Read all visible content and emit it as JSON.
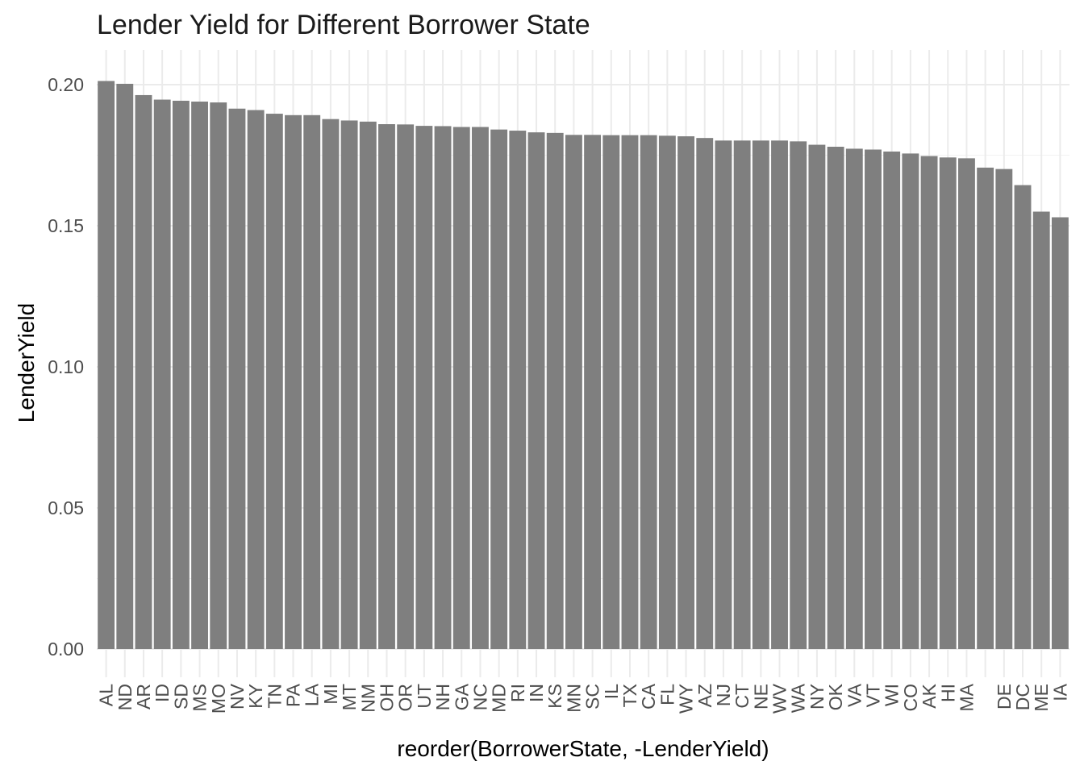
{
  "chart_data": {
    "type": "bar",
    "title": "Lender Yield for Different Borrower State",
    "xlabel": "reorder(BorrowerState, -LenderYield)",
    "ylabel": "LenderYield",
    "ylim": [
      0,
      0.21
    ],
    "yticks": [
      "0.00",
      "0.05",
      "0.10",
      "0.15",
      "0.20"
    ],
    "grid": true,
    "bar_color": "#7f7f7f",
    "grid_color": "#ebebeb",
    "categories": [
      "AL",
      "ND",
      "AR",
      "ID",
      "SD",
      "MS",
      "MO",
      "NV",
      "KY",
      "TN",
      "PA",
      "LA",
      "MI",
      "MT",
      "NM",
      "OH",
      "OR",
      "UT",
      "NH",
      "GA",
      "NC",
      "MD",
      "RI",
      "IN",
      "KS",
      "MN",
      "SC",
      "IL",
      "TX",
      "CA",
      "FL",
      "WY",
      "AZ",
      "NJ",
      "CT",
      "NE",
      "WV",
      "WA",
      "NY",
      "OK",
      "VA",
      "VT",
      "WI",
      "CO",
      "AK",
      "HI",
      "MA",
      "",
      "DE",
      "DC",
      "ME",
      "IA"
    ],
    "values": [
      0.2013,
      0.2003,
      0.1963,
      0.1947,
      0.1943,
      0.194,
      0.1937,
      0.1915,
      0.191,
      0.1897,
      0.1892,
      0.1892,
      0.1878,
      0.1873,
      0.1869,
      0.186,
      0.1859,
      0.1854,
      0.1853,
      0.185,
      0.185,
      0.1841,
      0.1837,
      0.1831,
      0.1829,
      0.1822,
      0.1822,
      0.1821,
      0.1821,
      0.1821,
      0.1819,
      0.1817,
      0.1811,
      0.1802,
      0.1802,
      0.1802,
      0.1802,
      0.1799,
      0.1787,
      0.178,
      0.1773,
      0.177,
      0.1763,
      0.1756,
      0.1747,
      0.1742,
      0.1739,
      0.1706,
      0.1701,
      0.1644,
      0.155,
      0.153
    ]
  }
}
